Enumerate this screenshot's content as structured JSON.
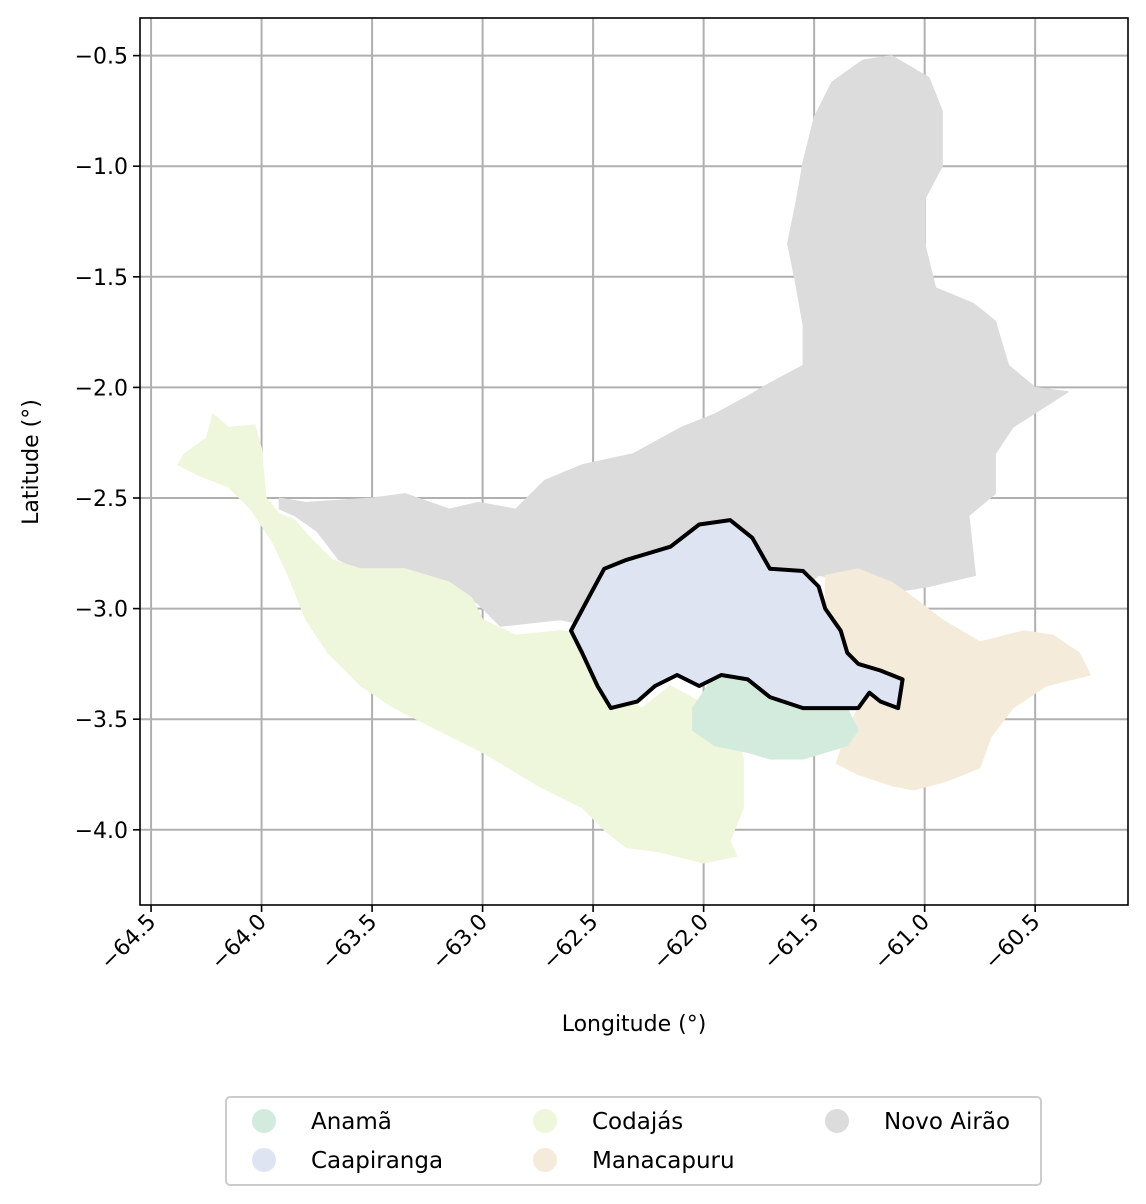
{
  "map": {
    "xlabel": "Longitude (°)",
    "ylabel": "Latitude (°)",
    "xlim": [
      -64.55,
      -60.08
    ],
    "ylim": [
      -4.34,
      -0.33
    ],
    "x_ticks": [
      -64.5,
      -64.0,
      -63.5,
      -63.0,
      -62.5,
      -62.0,
      -61.5,
      -61.0,
      -60.5
    ],
    "x_tick_labels": [
      "−64.5",
      "−64.0",
      "−63.5",
      "−63.0",
      "−62.5",
      "−62.0",
      "−61.5",
      "−61.0",
      "−60.5"
    ],
    "y_ticks": [
      -0.5,
      -1.0,
      -1.5,
      -2.0,
      -2.5,
      -3.0,
      -3.5,
      -4.0
    ],
    "y_tick_labels": [
      "−0.5",
      "−1.0",
      "−1.5",
      "−2.0",
      "−2.5",
      "−3.0",
      "−3.5",
      "−4.0"
    ],
    "grid": true,
    "legend_position": "bottom-center",
    "highlighted_region": "Caapiranga",
    "highlight_outline_color": "#000000",
    "regions": [
      {
        "name": "Novo Airão",
        "color": "#dcdcdc",
        "coords": [
          [
            -63.92,
            -2.55
          ],
          [
            -63.92,
            -2.5
          ],
          [
            -63.8,
            -2.52
          ],
          [
            -63.5,
            -2.5
          ],
          [
            -63.35,
            -2.48
          ],
          [
            -63.15,
            -2.55
          ],
          [
            -63.02,
            -2.52
          ],
          [
            -62.85,
            -2.55
          ],
          [
            -62.72,
            -2.42
          ],
          [
            -62.55,
            -2.35
          ],
          [
            -62.32,
            -2.3
          ],
          [
            -62.1,
            -2.18
          ],
          [
            -61.95,
            -2.12
          ],
          [
            -61.82,
            -2.05
          ],
          [
            -61.7,
            -1.98
          ],
          [
            -61.55,
            -1.9
          ],
          [
            -61.55,
            -1.72
          ],
          [
            -61.58,
            -1.55
          ],
          [
            -61.62,
            -1.35
          ],
          [
            -61.58,
            -1.15
          ],
          [
            -61.55,
            -0.98
          ],
          [
            -61.5,
            -0.78
          ],
          [
            -61.42,
            -0.62
          ],
          [
            -61.28,
            -0.52
          ],
          [
            -61.15,
            -0.5
          ],
          [
            -60.98,
            -0.6
          ],
          [
            -60.92,
            -0.75
          ],
          [
            -60.92,
            -1.0
          ],
          [
            -61.0,
            -1.15
          ],
          [
            -61.0,
            -1.35
          ],
          [
            -60.95,
            -1.55
          ],
          [
            -60.78,
            -1.62
          ],
          [
            -60.68,
            -1.7
          ],
          [
            -60.62,
            -1.9
          ],
          [
            -60.5,
            -2.0
          ],
          [
            -60.35,
            -2.02
          ],
          [
            -60.6,
            -2.18
          ],
          [
            -60.68,
            -2.3
          ],
          [
            -60.68,
            -2.48
          ],
          [
            -60.8,
            -2.58
          ],
          [
            -60.77,
            -2.85
          ],
          [
            -60.98,
            -2.9
          ],
          [
            -61.1,
            -2.92
          ],
          [
            -61.3,
            -2.88
          ],
          [
            -61.48,
            -2.85
          ],
          [
            -61.6,
            -2.95
          ],
          [
            -61.75,
            -3.02
          ],
          [
            -61.9,
            -3.08
          ],
          [
            -62.08,
            -3.12
          ],
          [
            -62.3,
            -3.1
          ],
          [
            -62.5,
            -3.08
          ],
          [
            -62.65,
            -3.05
          ],
          [
            -62.92,
            -3.08
          ],
          [
            -63.02,
            -2.98
          ],
          [
            -63.15,
            -2.88
          ],
          [
            -63.35,
            -2.85
          ],
          [
            -63.5,
            -2.85
          ],
          [
            -63.65,
            -2.78
          ],
          [
            -63.75,
            -2.65
          ],
          [
            -63.85,
            -2.58
          ]
        ]
      },
      {
        "name": "Codajás",
        "color": "#eef7dc",
        "coords": [
          [
            -64.38,
            -2.35
          ],
          [
            -64.35,
            -2.3
          ],
          [
            -64.25,
            -2.23
          ],
          [
            -64.22,
            -2.12
          ],
          [
            -64.15,
            -2.18
          ],
          [
            -64.03,
            -2.17
          ],
          [
            -64.0,
            -2.28
          ],
          [
            -63.98,
            -2.5
          ],
          [
            -63.92,
            -2.57
          ],
          [
            -63.85,
            -2.6
          ],
          [
            -63.78,
            -2.68
          ],
          [
            -63.68,
            -2.78
          ],
          [
            -63.55,
            -2.82
          ],
          [
            -63.35,
            -2.82
          ],
          [
            -63.15,
            -2.88
          ],
          [
            -63.05,
            -2.95
          ],
          [
            -63.0,
            -3.05
          ],
          [
            -62.85,
            -3.12
          ],
          [
            -62.65,
            -3.1
          ],
          [
            -62.48,
            -3.12
          ],
          [
            -62.45,
            -3.25
          ],
          [
            -62.4,
            -3.38
          ],
          [
            -62.28,
            -3.45
          ],
          [
            -62.15,
            -3.35
          ],
          [
            -62.02,
            -3.42
          ],
          [
            -61.98,
            -3.55
          ],
          [
            -61.85,
            -3.58
          ],
          [
            -61.82,
            -3.68
          ],
          [
            -61.82,
            -3.9
          ],
          [
            -61.88,
            -4.05
          ],
          [
            -61.85,
            -4.12
          ],
          [
            -62.0,
            -4.15
          ],
          [
            -62.2,
            -4.1
          ],
          [
            -62.35,
            -4.08
          ],
          [
            -62.45,
            -4.0
          ],
          [
            -62.55,
            -3.9
          ],
          [
            -62.75,
            -3.8
          ],
          [
            -63.0,
            -3.65
          ],
          [
            -63.2,
            -3.55
          ],
          [
            -63.4,
            -3.45
          ],
          [
            -63.55,
            -3.35
          ],
          [
            -63.7,
            -3.2
          ],
          [
            -63.8,
            -3.05
          ],
          [
            -63.88,
            -2.85
          ],
          [
            -63.95,
            -2.7
          ],
          [
            -64.05,
            -2.55
          ],
          [
            -64.15,
            -2.45
          ],
          [
            -64.28,
            -2.4
          ]
        ]
      },
      {
        "name": "Manacapuru",
        "color": "#f5ebda",
        "coords": [
          [
            -61.45,
            -2.85
          ],
          [
            -61.3,
            -2.82
          ],
          [
            -61.15,
            -2.88
          ],
          [
            -61.05,
            -2.95
          ],
          [
            -60.92,
            -3.05
          ],
          [
            -60.75,
            -3.15
          ],
          [
            -60.55,
            -3.1
          ],
          [
            -60.42,
            -3.12
          ],
          [
            -60.3,
            -3.2
          ],
          [
            -60.25,
            -3.3
          ],
          [
            -60.45,
            -3.35
          ],
          [
            -60.6,
            -3.45
          ],
          [
            -60.7,
            -3.58
          ],
          [
            -60.75,
            -3.72
          ],
          [
            -60.9,
            -3.78
          ],
          [
            -61.05,
            -3.82
          ],
          [
            -61.15,
            -3.8
          ],
          [
            -61.3,
            -3.75
          ],
          [
            -61.4,
            -3.7
          ],
          [
            -61.35,
            -3.55
          ],
          [
            -61.3,
            -3.45
          ],
          [
            -61.35,
            -3.35
          ],
          [
            -61.42,
            -3.2
          ],
          [
            -61.45,
            -3.05
          ]
        ]
      },
      {
        "name": "Anamã",
        "color": "#d2ebdd",
        "coords": [
          [
            -62.05,
            -3.45
          ],
          [
            -61.95,
            -3.3
          ],
          [
            -61.8,
            -3.32
          ],
          [
            -61.65,
            -3.38
          ],
          [
            -61.5,
            -3.42
          ],
          [
            -61.35,
            -3.45
          ],
          [
            -61.3,
            -3.55
          ],
          [
            -61.35,
            -3.62
          ],
          [
            -61.45,
            -3.65
          ],
          [
            -61.55,
            -3.68
          ],
          [
            -61.7,
            -3.68
          ],
          [
            -61.8,
            -3.65
          ],
          [
            -61.95,
            -3.62
          ],
          [
            -62.05,
            -3.55
          ]
        ]
      },
      {
        "name": "Caapiranga",
        "color": "#dfe4f2",
        "coords": [
          [
            -62.6,
            -3.1
          ],
          [
            -62.52,
            -2.95
          ],
          [
            -62.45,
            -2.82
          ],
          [
            -62.35,
            -2.78
          ],
          [
            -62.15,
            -2.72
          ],
          [
            -62.02,
            -2.62
          ],
          [
            -61.88,
            -2.6
          ],
          [
            -61.78,
            -2.68
          ],
          [
            -61.7,
            -2.82
          ],
          [
            -61.55,
            -2.83
          ],
          [
            -61.48,
            -2.9
          ],
          [
            -61.45,
            -3.0
          ],
          [
            -61.38,
            -3.1
          ],
          [
            -61.35,
            -3.2
          ],
          [
            -61.3,
            -3.25
          ],
          [
            -61.2,
            -3.28
          ],
          [
            -61.1,
            -3.32
          ],
          [
            -61.12,
            -3.45
          ],
          [
            -61.2,
            -3.42
          ],
          [
            -61.25,
            -3.38
          ],
          [
            -61.3,
            -3.45
          ],
          [
            -61.55,
            -3.45
          ],
          [
            -61.7,
            -3.4
          ],
          [
            -61.8,
            -3.32
          ],
          [
            -61.92,
            -3.3
          ],
          [
            -62.02,
            -3.35
          ],
          [
            -62.12,
            -3.3
          ],
          [
            -62.22,
            -3.35
          ],
          [
            -62.3,
            -3.42
          ],
          [
            -62.42,
            -3.45
          ],
          [
            -62.48,
            -3.35
          ],
          [
            -62.55,
            -3.2
          ]
        ]
      }
    ],
    "legend": [
      {
        "label": "Anamã",
        "color": "#d2ebdd"
      },
      {
        "label": "Caapiranga",
        "color": "#dfe4f2"
      },
      {
        "label": "Codajás",
        "color": "#eef7dc"
      },
      {
        "label": "Manacapuru",
        "color": "#f5ebda"
      },
      {
        "label": "Novo Airão",
        "color": "#dcdcdc"
      }
    ]
  }
}
